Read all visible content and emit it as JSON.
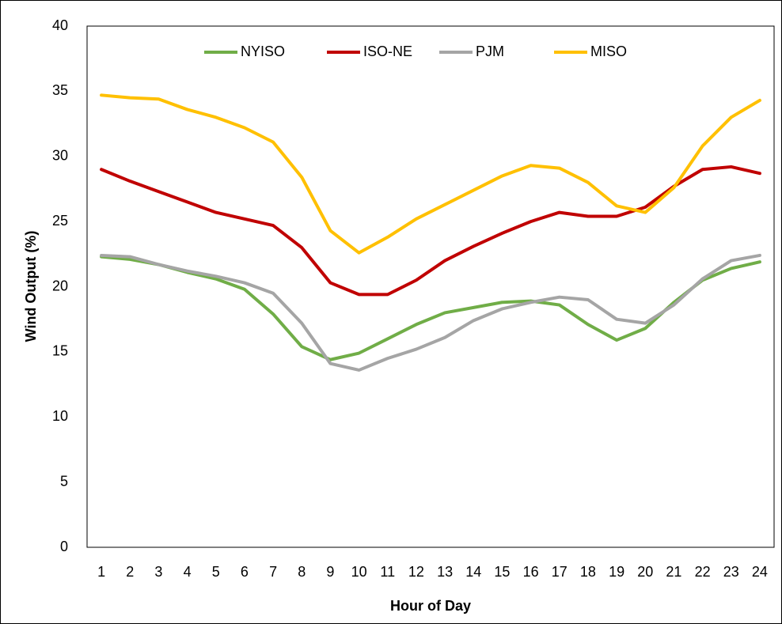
{
  "chart_data": {
    "type": "line",
    "xlabel": "Hour of Day",
    "ylabel": "Wind Output (%)",
    "categories": [
      "1",
      "2",
      "3",
      "4",
      "5",
      "6",
      "7",
      "8",
      "9",
      "10",
      "11",
      "12",
      "13",
      "14",
      "15",
      "16",
      "17",
      "18",
      "19",
      "20",
      "21",
      "22",
      "23",
      "24"
    ],
    "series": [
      {
        "name": "NYISO",
        "color": "#70ad47",
        "values": [
          22.3,
          22.1,
          21.7,
          21.1,
          20.6,
          19.8,
          17.9,
          15.4,
          14.4,
          14.9,
          16.0,
          17.1,
          18.0,
          18.4,
          18.8,
          18.9,
          18.6,
          17.1,
          15.9,
          16.8,
          18.8,
          20.5,
          21.4,
          21.9
        ]
      },
      {
        "name": "ISO-NE",
        "color": "#c00000",
        "values": [
          29.0,
          28.1,
          27.3,
          26.5,
          25.7,
          25.2,
          24.7,
          23.0,
          20.3,
          19.4,
          19.4,
          20.5,
          22.0,
          23.1,
          24.1,
          25.0,
          25.7,
          25.4,
          25.4,
          26.1,
          27.7,
          29.0,
          29.2,
          28.7
        ]
      },
      {
        "name": "PJM",
        "color": "#a5a5a5",
        "values": [
          22.4,
          22.3,
          21.7,
          21.2,
          20.8,
          20.3,
          19.5,
          17.2,
          14.1,
          13.6,
          14.5,
          15.2,
          16.1,
          17.4,
          18.3,
          18.8,
          19.2,
          19.0,
          17.5,
          17.2,
          18.6,
          20.6,
          22.0,
          22.4
        ]
      },
      {
        "name": "MISO",
        "color": "#ffc000",
        "values": [
          34.7,
          34.5,
          34.4,
          33.6,
          33.0,
          32.2,
          31.1,
          28.4,
          24.3,
          22.6,
          23.8,
          25.2,
          26.3,
          27.4,
          28.5,
          29.3,
          29.1,
          28.0,
          26.2,
          25.7,
          27.6,
          30.8,
          33.0,
          34.3
        ]
      }
    ],
    "ylim": [
      0,
      40
    ],
    "yticks": [
      0,
      5,
      10,
      15,
      20,
      25,
      30,
      35,
      40
    ],
    "grid": false,
    "legend": "top"
  }
}
